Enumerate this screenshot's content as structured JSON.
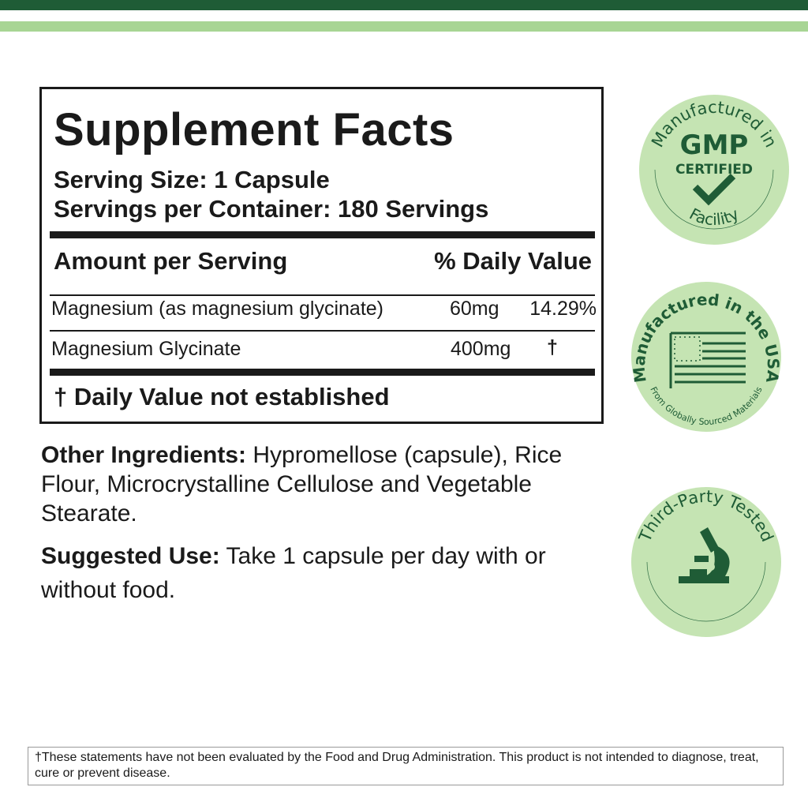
{
  "facts": {
    "title": "Supplement Facts",
    "serving_size": "Serving Size: 1 Capsule",
    "servings_per_container": "Servings per Container: 180 Servings",
    "amount_header": "Amount per Serving",
    "dv_header": "% Daily Value",
    "rows": [
      {
        "name": "Magnesium (as magnesium glycinate)",
        "amount": "60mg",
        "dv": "14.29%"
      },
      {
        "name": "Magnesium Glycinate",
        "amount": "400mg",
        "dv": "†"
      }
    ],
    "footnote": "† Daily Value not established"
  },
  "other_ingredients": {
    "label": "Other Ingredients:",
    "text": " Hypromellose (capsule), Rice Flour, Microcrystalline Cellulose and Vegetable Stearate."
  },
  "suggested_use": {
    "label": "Suggested Use:",
    "text": " Take 1 capsule per day with or without food."
  },
  "badges": {
    "gmp": {
      "top": "Manufactured in",
      "main": "GMP",
      "sub": "CERTIFIED",
      "bottom": "Facility"
    },
    "usa": {
      "top": "Manufactured in the USA",
      "bottom": "From Globally Sourced Materials"
    },
    "tested": {
      "top": "Third-Party Tested"
    }
  },
  "disclaimer": "†These statements have not been evaluated by the Food and Drug Administration. This product is not intended to diagnose, treat, cure or prevent disease.",
  "colors": {
    "dark_green": "#1f5c36",
    "light_green": "#a8d594",
    "badge_bg": "#c5e4b3"
  }
}
